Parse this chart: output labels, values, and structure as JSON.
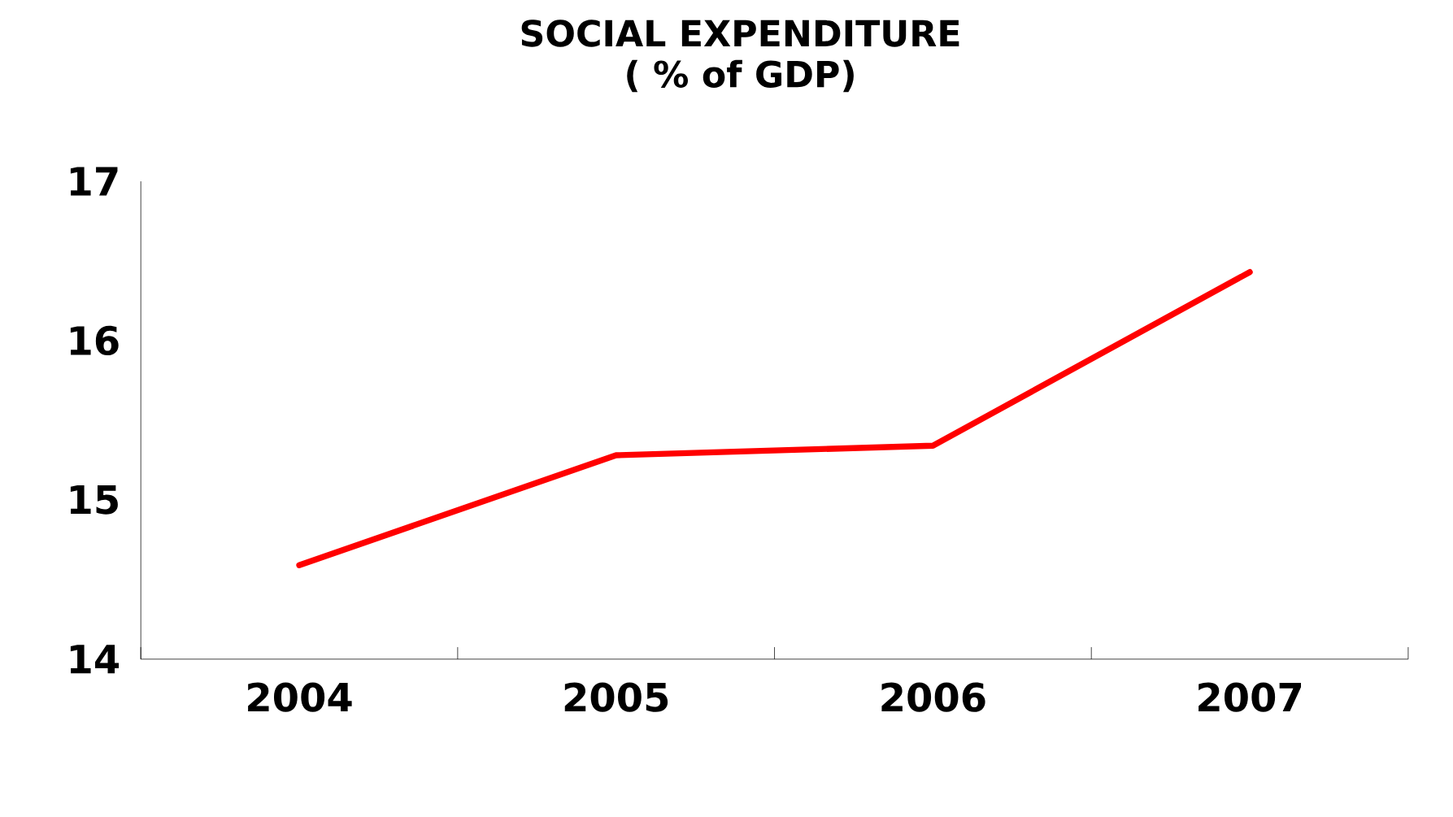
{
  "chart_data": {
    "type": "line",
    "title": "SOCIAL EXPENDITURE",
    "subtitle": "( % of GDP)",
    "categories": [
      "2004",
      "2005",
      "2006",
      "2007"
    ],
    "series": [
      {
        "color": "#ff0000",
        "values": [
          14.59,
          15.28,
          15.34,
          16.43
        ]
      }
    ],
    "ylim": [
      14,
      17
    ],
    "yticks": [
      14,
      15,
      16,
      17
    ],
    "grid": false,
    "marker": "none",
    "line_style": "solid"
  }
}
